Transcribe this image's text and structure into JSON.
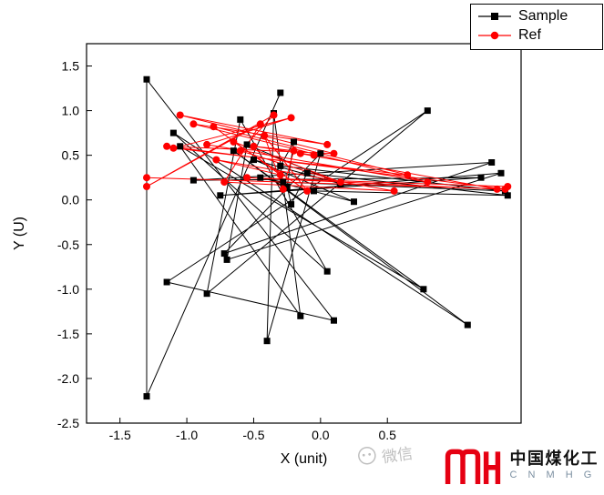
{
  "chart_data": {
    "type": "line",
    "title": "",
    "xlabel": "X (unit)",
    "ylabel": "Y (U)",
    "xlim": [
      -1.75,
      1.5
    ],
    "ylim": [
      -2.5,
      1.75
    ],
    "x_ticks": [
      -1.5,
      -1.0,
      -0.5,
      0.0,
      0.5
    ],
    "y_ticks": [
      1.5,
      1.0,
      0.5,
      0.0,
      -0.5,
      -1.0,
      -1.5,
      -2.0,
      -2.5
    ],
    "grid": false,
    "legend_position": "top-right",
    "series": [
      {
        "name": "Sample",
        "color": "#000000",
        "marker": "square",
        "points": [
          [
            -0.3,
            1.2
          ],
          [
            -1.3,
            -2.2
          ],
          [
            -1.3,
            1.35
          ],
          [
            0.1,
            -1.35
          ],
          [
            -1.15,
            -0.92
          ],
          [
            0.8,
            1.0
          ],
          [
            -0.85,
            -1.05
          ],
          [
            -0.6,
            0.9
          ],
          [
            0.05,
            -0.8
          ],
          [
            -1.1,
            0.75
          ],
          [
            1.1,
            -1.4
          ],
          [
            -0.65,
            0.55
          ],
          [
            0.77,
            -1.0
          ],
          [
            -1.05,
            0.6
          ],
          [
            -0.15,
            -1.3
          ],
          [
            -0.35,
            0.97
          ],
          [
            -0.4,
            -1.58
          ],
          [
            0.0,
            0.52
          ],
          [
            -0.72,
            -0.6
          ],
          [
            1.28,
            0.42
          ],
          [
            -0.95,
            0.22
          ],
          [
            1.2,
            0.25
          ],
          [
            -0.75,
            0.05
          ],
          [
            1.35,
            0.3
          ],
          [
            -0.7,
            -0.67
          ],
          [
            -0.55,
            0.62
          ],
          [
            0.15,
            0.18
          ],
          [
            -0.5,
            0.45
          ],
          [
            0.25,
            -0.02
          ],
          [
            -0.45,
            0.25
          ],
          [
            -0.28,
            0.2
          ],
          [
            1.38,
            0.1
          ],
          [
            -0.3,
            0.38
          ],
          [
            -0.2,
            0.65
          ],
          [
            -0.25,
            0.15
          ],
          [
            -0.22,
            -0.05
          ],
          [
            -0.1,
            0.3
          ],
          [
            1.4,
            0.05
          ],
          [
            -0.05,
            0.1
          ]
        ]
      },
      {
        "name": "Ref",
        "color": "#ff0000",
        "marker": "circle",
        "points": [
          [
            -1.3,
            0.25
          ],
          [
            1.38,
            0.12
          ],
          [
            -1.15,
            0.6
          ],
          [
            0.1,
            0.52
          ],
          [
            -1.05,
            0.95
          ],
          [
            0.05,
            0.62
          ],
          [
            -0.95,
            0.85
          ],
          [
            0.8,
            0.2
          ],
          [
            -0.85,
            0.62
          ],
          [
            -0.22,
            0.92
          ],
          [
            -1.1,
            0.58
          ],
          [
            0.65,
            0.28
          ],
          [
            -0.8,
            0.82
          ],
          [
            -0.3,
            0.28
          ],
          [
            -0.78,
            0.45
          ],
          [
            0.55,
            0.1
          ],
          [
            -0.72,
            0.2
          ],
          [
            -0.45,
            0.85
          ],
          [
            -1.3,
            0.15
          ],
          [
            -0.35,
            0.95
          ],
          [
            -0.6,
            0.55
          ],
          [
            0.15,
            0.2
          ],
          [
            -0.65,
            0.65
          ],
          [
            -0.1,
            0.1
          ],
          [
            -0.42,
            0.72
          ],
          [
            -0.28,
            0.12
          ],
          [
            -0.2,
            0.55
          ],
          [
            -0.5,
            0.6
          ],
          [
            -0.05,
            0.5
          ],
          [
            -0.15,
            0.52
          ],
          [
            1.32,
            0.12
          ],
          [
            -0.55,
            0.25
          ],
          [
            1.4,
            0.15
          ]
        ]
      }
    ]
  },
  "watermark": {
    "text": "微信"
  },
  "branding": {
    "name_cn": "中国煤化工",
    "name_en": "C N M H G",
    "logo_color": "#e60012"
  }
}
